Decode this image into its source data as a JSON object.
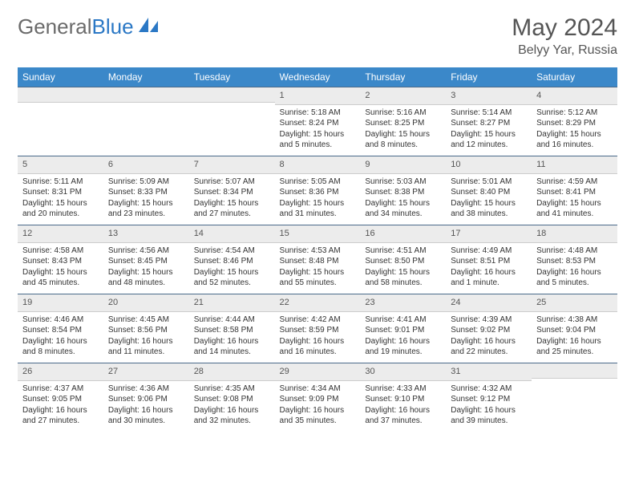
{
  "brand": {
    "part1": "General",
    "part2": "Blue"
  },
  "title": "May 2024",
  "location": "Belyy Yar, Russia",
  "colors": {
    "header_bg": "#3b88c9",
    "header_text": "#ffffff",
    "daynum_bg": "#ececec",
    "border": "#4a6a8a",
    "text": "#333333",
    "brand_gray": "#6b6b6b",
    "brand_blue": "#2b78c5"
  },
  "typography": {
    "title_fontsize": 30,
    "location_fontsize": 16,
    "header_fontsize": 12,
    "cell_fontsize": 10,
    "daynum_fontsize": 11
  },
  "weekdays": [
    "Sunday",
    "Monday",
    "Tuesday",
    "Wednesday",
    "Thursday",
    "Friday",
    "Saturday"
  ],
  "weeks": [
    [
      null,
      null,
      null,
      {
        "n": "1",
        "sr": "Sunrise: 5:18 AM",
        "ss": "Sunset: 8:24 PM",
        "dl": "Daylight: 15 hours and 5 minutes."
      },
      {
        "n": "2",
        "sr": "Sunrise: 5:16 AM",
        "ss": "Sunset: 8:25 PM",
        "dl": "Daylight: 15 hours and 8 minutes."
      },
      {
        "n": "3",
        "sr": "Sunrise: 5:14 AM",
        "ss": "Sunset: 8:27 PM",
        "dl": "Daylight: 15 hours and 12 minutes."
      },
      {
        "n": "4",
        "sr": "Sunrise: 5:12 AM",
        "ss": "Sunset: 8:29 PM",
        "dl": "Daylight: 15 hours and 16 minutes."
      }
    ],
    [
      {
        "n": "5",
        "sr": "Sunrise: 5:11 AM",
        "ss": "Sunset: 8:31 PM",
        "dl": "Daylight: 15 hours and 20 minutes."
      },
      {
        "n": "6",
        "sr": "Sunrise: 5:09 AM",
        "ss": "Sunset: 8:33 PM",
        "dl": "Daylight: 15 hours and 23 minutes."
      },
      {
        "n": "7",
        "sr": "Sunrise: 5:07 AM",
        "ss": "Sunset: 8:34 PM",
        "dl": "Daylight: 15 hours and 27 minutes."
      },
      {
        "n": "8",
        "sr": "Sunrise: 5:05 AM",
        "ss": "Sunset: 8:36 PM",
        "dl": "Daylight: 15 hours and 31 minutes."
      },
      {
        "n": "9",
        "sr": "Sunrise: 5:03 AM",
        "ss": "Sunset: 8:38 PM",
        "dl": "Daylight: 15 hours and 34 minutes."
      },
      {
        "n": "10",
        "sr": "Sunrise: 5:01 AM",
        "ss": "Sunset: 8:40 PM",
        "dl": "Daylight: 15 hours and 38 minutes."
      },
      {
        "n": "11",
        "sr": "Sunrise: 4:59 AM",
        "ss": "Sunset: 8:41 PM",
        "dl": "Daylight: 15 hours and 41 minutes."
      }
    ],
    [
      {
        "n": "12",
        "sr": "Sunrise: 4:58 AM",
        "ss": "Sunset: 8:43 PM",
        "dl": "Daylight: 15 hours and 45 minutes."
      },
      {
        "n": "13",
        "sr": "Sunrise: 4:56 AM",
        "ss": "Sunset: 8:45 PM",
        "dl": "Daylight: 15 hours and 48 minutes."
      },
      {
        "n": "14",
        "sr": "Sunrise: 4:54 AM",
        "ss": "Sunset: 8:46 PM",
        "dl": "Daylight: 15 hours and 52 minutes."
      },
      {
        "n": "15",
        "sr": "Sunrise: 4:53 AM",
        "ss": "Sunset: 8:48 PM",
        "dl": "Daylight: 15 hours and 55 minutes."
      },
      {
        "n": "16",
        "sr": "Sunrise: 4:51 AM",
        "ss": "Sunset: 8:50 PM",
        "dl": "Daylight: 15 hours and 58 minutes."
      },
      {
        "n": "17",
        "sr": "Sunrise: 4:49 AM",
        "ss": "Sunset: 8:51 PM",
        "dl": "Daylight: 16 hours and 1 minute."
      },
      {
        "n": "18",
        "sr": "Sunrise: 4:48 AM",
        "ss": "Sunset: 8:53 PM",
        "dl": "Daylight: 16 hours and 5 minutes."
      }
    ],
    [
      {
        "n": "19",
        "sr": "Sunrise: 4:46 AM",
        "ss": "Sunset: 8:54 PM",
        "dl": "Daylight: 16 hours and 8 minutes."
      },
      {
        "n": "20",
        "sr": "Sunrise: 4:45 AM",
        "ss": "Sunset: 8:56 PM",
        "dl": "Daylight: 16 hours and 11 minutes."
      },
      {
        "n": "21",
        "sr": "Sunrise: 4:44 AM",
        "ss": "Sunset: 8:58 PM",
        "dl": "Daylight: 16 hours and 14 minutes."
      },
      {
        "n": "22",
        "sr": "Sunrise: 4:42 AM",
        "ss": "Sunset: 8:59 PM",
        "dl": "Daylight: 16 hours and 16 minutes."
      },
      {
        "n": "23",
        "sr": "Sunrise: 4:41 AM",
        "ss": "Sunset: 9:01 PM",
        "dl": "Daylight: 16 hours and 19 minutes."
      },
      {
        "n": "24",
        "sr": "Sunrise: 4:39 AM",
        "ss": "Sunset: 9:02 PM",
        "dl": "Daylight: 16 hours and 22 minutes."
      },
      {
        "n": "25",
        "sr": "Sunrise: 4:38 AM",
        "ss": "Sunset: 9:04 PM",
        "dl": "Daylight: 16 hours and 25 minutes."
      }
    ],
    [
      {
        "n": "26",
        "sr": "Sunrise: 4:37 AM",
        "ss": "Sunset: 9:05 PM",
        "dl": "Daylight: 16 hours and 27 minutes."
      },
      {
        "n": "27",
        "sr": "Sunrise: 4:36 AM",
        "ss": "Sunset: 9:06 PM",
        "dl": "Daylight: 16 hours and 30 minutes."
      },
      {
        "n": "28",
        "sr": "Sunrise: 4:35 AM",
        "ss": "Sunset: 9:08 PM",
        "dl": "Daylight: 16 hours and 32 minutes."
      },
      {
        "n": "29",
        "sr": "Sunrise: 4:34 AM",
        "ss": "Sunset: 9:09 PM",
        "dl": "Daylight: 16 hours and 35 minutes."
      },
      {
        "n": "30",
        "sr": "Sunrise: 4:33 AM",
        "ss": "Sunset: 9:10 PM",
        "dl": "Daylight: 16 hours and 37 minutes."
      },
      {
        "n": "31",
        "sr": "Sunrise: 4:32 AM",
        "ss": "Sunset: 9:12 PM",
        "dl": "Daylight: 16 hours and 39 minutes."
      },
      null
    ]
  ]
}
